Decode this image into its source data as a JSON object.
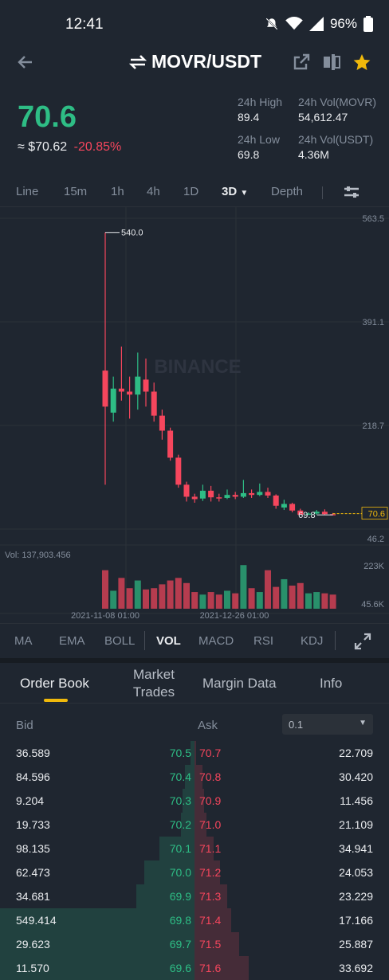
{
  "status_bar": {
    "time": "12:41",
    "battery": "96%"
  },
  "header": {
    "pair": "MOVR/USDT"
  },
  "price": {
    "last": "70.6",
    "fiat": "≈ $70.62",
    "change": "-20.85%"
  },
  "stats": {
    "high_label": "24h High",
    "high_value": "89.4",
    "low_label": "24h Low",
    "low_value": "69.8",
    "vol_base_label": "24h Vol(MOVR)",
    "vol_base_value": "54,612.47",
    "vol_quote_label": "24h Vol(USDT)",
    "vol_quote_value": "4.36M"
  },
  "intervals": [
    "Line",
    "15m",
    "1h",
    "4h",
    "1D",
    "3D",
    "Depth"
  ],
  "active_interval": "3D",
  "chart": {
    "axis_ticks": [
      "563.5",
      "391.1",
      "218.7",
      "46.2"
    ],
    "max_label": "540.0",
    "min_label": "69.8",
    "last_price_label": "70.6",
    "watermark": "BINANCE",
    "vol_label": "Vol: 137,903.456",
    "vol_ticks": [
      "223K",
      "45.6K"
    ],
    "dates": [
      "2021-11-08 01:00",
      "2021-12-26 01:00"
    ]
  },
  "chart_data": {
    "type": "candlestick",
    "ylim": [
      46.2,
      563.5
    ],
    "candles": [
      {
        "o": 310,
        "c": 250,
        "h": 540,
        "l": 120,
        "v": 150000
      },
      {
        "o": 240,
        "c": 280,
        "h": 300,
        "l": 225,
        "v": 70000
      },
      {
        "o": 280,
        "c": 275,
        "h": 350,
        "l": 260,
        "v": 120000
      },
      {
        "o": 275,
        "c": 270,
        "h": 300,
        "l": 230,
        "v": 80000
      },
      {
        "o": 270,
        "c": 300,
        "h": 340,
        "l": 245,
        "v": 110000
      },
      {
        "o": 295,
        "c": 275,
        "h": 330,
        "l": 250,
        "v": 75000
      },
      {
        "o": 275,
        "c": 235,
        "h": 290,
        "l": 225,
        "v": 80000
      },
      {
        "o": 235,
        "c": 210,
        "h": 245,
        "l": 195,
        "v": 95000
      },
      {
        "o": 210,
        "c": 165,
        "h": 215,
        "l": 160,
        "v": 110000
      },
      {
        "o": 165,
        "c": 120,
        "h": 170,
        "l": 115,
        "v": 120000
      },
      {
        "o": 120,
        "c": 100,
        "h": 125,
        "l": 92,
        "v": 100000
      },
      {
        "o": 100,
        "c": 96,
        "h": 105,
        "l": 90,
        "v": 65000
      },
      {
        "o": 97,
        "c": 110,
        "h": 120,
        "l": 93,
        "v": 55000
      },
      {
        "o": 110,
        "c": 99,
        "h": 118,
        "l": 92,
        "v": 65000
      },
      {
        "o": 99,
        "c": 98,
        "h": 105,
        "l": 92,
        "v": 55000
      },
      {
        "o": 98,
        "c": 103,
        "h": 112,
        "l": 96,
        "v": 70000
      },
      {
        "o": 103,
        "c": 100,
        "h": 108,
        "l": 96,
        "v": 60000
      },
      {
        "o": 100,
        "c": 106,
        "h": 128,
        "l": 98,
        "v": 170000
      },
      {
        "o": 106,
        "c": 103,
        "h": 112,
        "l": 98,
        "v": 80000
      },
      {
        "o": 103,
        "c": 108,
        "h": 122,
        "l": 101,
        "v": 65000
      },
      {
        "o": 108,
        "c": 102,
        "h": 115,
        "l": 98,
        "v": 150000
      },
      {
        "o": 102,
        "c": 85,
        "h": 104,
        "l": 80,
        "v": 85000
      },
      {
        "o": 82,
        "c": 88,
        "h": 95,
        "l": 78,
        "v": 115000
      },
      {
        "o": 88,
        "c": 77,
        "h": 90,
        "l": 74,
        "v": 90000
      },
      {
        "o": 77,
        "c": 70,
        "h": 80,
        "l": 69.8,
        "v": 100000
      },
      {
        "o": 70,
        "c": 72,
        "h": 74,
        "l": 69.8,
        "v": 60000
      },
      {
        "o": 72,
        "c": 75,
        "h": 78,
        "l": 70,
        "v": 65000
      },
      {
        "o": 75,
        "c": 71,
        "h": 79,
        "l": 69.8,
        "v": 60000
      },
      {
        "o": 71,
        "c": 70.6,
        "h": 73,
        "l": 69.8,
        "v": 55000
      }
    ]
  },
  "indicators": [
    "MA",
    "EMA",
    "BOLL",
    "VOL",
    "MACD",
    "RSI",
    "KDJ"
  ],
  "active_indicator": "VOL",
  "orderbook_tabs": [
    "Order Book",
    "Market Trades",
    "Margin Data",
    "Info"
  ],
  "orderbook_tabs_display": [
    "Order Book",
    "Market\nTrades",
    "Margin Data",
    "Info"
  ],
  "orderbook": {
    "bid_label": "Bid",
    "ask_label": "Ask",
    "precision": "0.1",
    "rows": [
      {
        "bid_qty": "36.589",
        "bid_price": "70.5",
        "ask_price": "70.7",
        "ask_qty": "22.709",
        "bid_depth": 0.02,
        "ask_depth": 0.01
      },
      {
        "bid_qty": "84.596",
        "bid_price": "70.4",
        "ask_price": "70.8",
        "ask_qty": "30.420",
        "bid_depth": 0.05,
        "ask_depth": 0.04
      },
      {
        "bid_qty": "9.204",
        "bid_price": "70.3",
        "ask_price": "70.9",
        "ask_qty": "11.456",
        "bid_depth": 0.06,
        "ask_depth": 0.05
      },
      {
        "bid_qty": "19.733",
        "bid_price": "70.2",
        "ask_price": "71.0",
        "ask_qty": "21.109",
        "bid_depth": 0.07,
        "ask_depth": 0.06
      },
      {
        "bid_qty": "98.135",
        "bid_price": "70.1",
        "ask_price": "71.1",
        "ask_qty": "34.941",
        "bid_depth": 0.18,
        "ask_depth": 0.1
      },
      {
        "bid_qty": "62.473",
        "bid_price": "70.0",
        "ask_price": "71.2",
        "ask_qty": "24.053",
        "bid_depth": 0.26,
        "ask_depth": 0.13
      },
      {
        "bid_qty": "34.681",
        "bid_price": "69.9",
        "ask_price": "71.3",
        "ask_qty": "23.229",
        "bid_depth": 0.3,
        "ask_depth": 0.17
      },
      {
        "bid_qty": "549.414",
        "bid_price": "69.8",
        "ask_price": "71.4",
        "ask_qty": "17.166",
        "bid_depth": 1.0,
        "ask_depth": 0.19
      },
      {
        "bid_qty": "29.623",
        "bid_price": "69.7",
        "ask_price": "71.5",
        "ask_qty": "25.887",
        "bid_depth": 1.0,
        "ask_depth": 0.23
      },
      {
        "bid_qty": "11.570",
        "bid_price": "69.6",
        "ask_price": "71.6",
        "ask_qty": "33.692",
        "bid_depth": 1.0,
        "ask_depth": 0.28
      }
    ]
  },
  "colors": {
    "up": "#2ebd85",
    "down": "#f6465d",
    "accent": "#f0b90b",
    "bg": "#1f2630"
  }
}
